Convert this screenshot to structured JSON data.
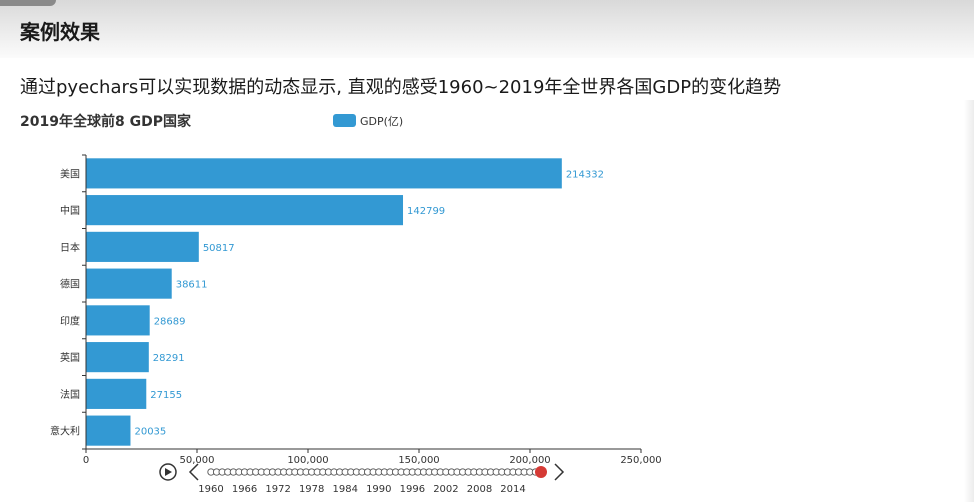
{
  "slide": {
    "title": "案例效果",
    "description": "通过pyechars可以实现数据的动态显示, 直观的感受1960~2019年全世界各国GDP的变化趋势"
  },
  "colors": {
    "bar": "#3399d3",
    "label": "#3399d3",
    "player_dot": "#d53a35"
  },
  "chart_data": {
    "type": "bar",
    "orientation": "horizontal",
    "title": "2019年全球前8 GDP国家",
    "legend": "GDP(亿)",
    "legend_position": "top-center",
    "categories": [
      "美国",
      "中国",
      "日本",
      "德国",
      "印度",
      "英国",
      "法国",
      "意大利"
    ],
    "series": [
      {
        "name": "GDP(亿)",
        "values": [
          214332,
          142799,
          50817,
          38611,
          28689,
          28291,
          27155,
          20035
        ]
      }
    ],
    "xlim": [
      0,
      250000
    ],
    "x_ticks": [
      "0",
      "50,000",
      "100,000",
      "150,000",
      "200,000",
      "250,000"
    ],
    "grid": false,
    "timeline": {
      "labels": [
        "1960",
        "1966",
        "1972",
        "1978",
        "1984",
        "1990",
        "1996",
        "2002",
        "2008",
        "2014"
      ],
      "start_year": 1960,
      "end_year": 2019,
      "current_year": 2019
    }
  }
}
